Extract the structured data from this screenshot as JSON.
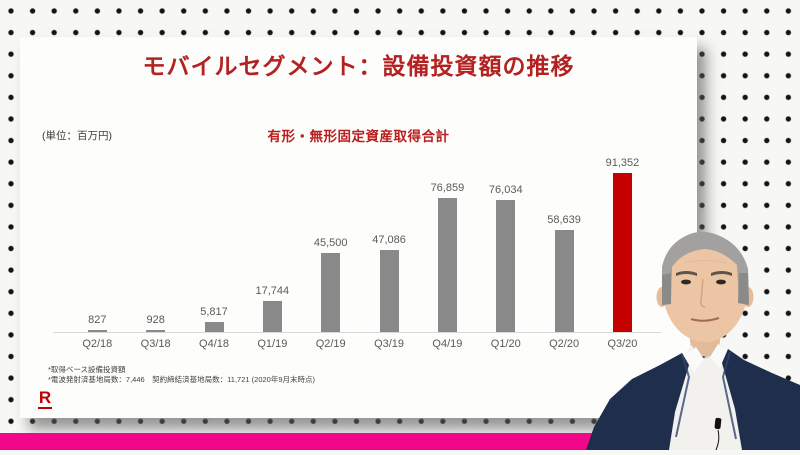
{
  "slide": {
    "title": "モバイルセグメント：設備投資額の推移",
    "unit_label": "(単位：百万円)",
    "subtitle": "有形・無形固定資産取得合計",
    "footnotes": [
      "*取得ベース設備投資額",
      "*電波発射済基地局数：7,446　契約締結済基地局数：11,721 (2020年9月末時点)"
    ],
    "logo_letter": "R"
  },
  "chart_data": {
    "type": "bar",
    "title": "有形・無形固定資産取得合計",
    "unit": "百万円",
    "categories": [
      "Q2/18",
      "Q3/18",
      "Q4/18",
      "Q1/19",
      "Q2/19",
      "Q3/19",
      "Q4/19",
      "Q1/20",
      "Q2/20",
      "Q3/20"
    ],
    "values": [
      827,
      928,
      5817,
      17744,
      45500,
      47086,
      76859,
      76034,
      58639,
      91352
    ],
    "value_labels": [
      "827",
      "928",
      "5,817",
      "17,744",
      "45,500",
      "47,086",
      "76,859",
      "76,034",
      "58,639",
      "91,352"
    ],
    "highlight_index": 9,
    "bar_color": "#898989",
    "highlight_color": "#c40000",
    "xlabel": "",
    "ylabel": "",
    "ylim": [
      0,
      100000
    ],
    "grid": false,
    "legend": "none"
  },
  "colors": {
    "title_red": "#b32121",
    "logo_red": "#bf0000",
    "accent_magenta": "#f0078a",
    "bar_gray": "#898989",
    "bar_red": "#c40000",
    "card_white": "#fdfdfb",
    "dot_black": "#141414"
  }
}
